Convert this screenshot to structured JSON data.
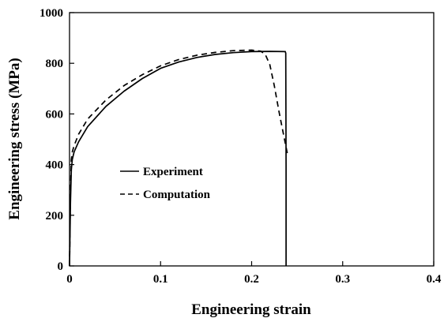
{
  "chart_data": {
    "type": "line",
    "title": "",
    "xlabel": "Engineering strain",
    "ylabel": "Engineering stress (MPa)",
    "xlim": [
      0,
      0.4
    ],
    "ylim": [
      0,
      1000
    ],
    "xticks": [
      "0",
      "0.1",
      "0.2",
      "0.3",
      "0.4"
    ],
    "yticks": [
      "0",
      "200",
      "400",
      "600",
      "800",
      "1000"
    ],
    "xtick_values": [
      0,
      0.1,
      0.2,
      0.3,
      0.4
    ],
    "ytick_values": [
      0,
      200,
      400,
      600,
      800,
      1000
    ],
    "grid": false,
    "legend_position": "center-left",
    "series": [
      {
        "name": "Experiment",
        "line_style": "solid",
        "color": "#000000",
        "x": [
          0,
          0.001,
          0.002,
          0.003,
          0.005,
          0.01,
          0.02,
          0.04,
          0.06,
          0.08,
          0.1,
          0.12,
          0.14,
          0.16,
          0.18,
          0.2,
          0.22,
          0.237,
          0.2375,
          0.2378,
          0.2378
        ],
        "y": [
          0,
          250,
          380,
          420,
          450,
          490,
          550,
          630,
          690,
          740,
          780,
          805,
          823,
          835,
          842,
          846,
          847,
          846,
          840,
          400,
          0
        ]
      },
      {
        "name": "Computation",
        "line_style": "dashed",
        "color": "#000000",
        "x": [
          0,
          0.001,
          0.002,
          0.003,
          0.005,
          0.01,
          0.02,
          0.04,
          0.06,
          0.08,
          0.1,
          0.12,
          0.14,
          0.16,
          0.18,
          0.2,
          0.21,
          0.215,
          0.22,
          0.225,
          0.23,
          0.235,
          0.24
        ],
        "y": [
          0,
          300,
          420,
          450,
          475,
          520,
          580,
          655,
          712,
          755,
          790,
          815,
          832,
          843,
          850,
          852,
          848,
          835,
          795,
          710,
          610,
          520,
          430
        ]
      }
    ]
  }
}
